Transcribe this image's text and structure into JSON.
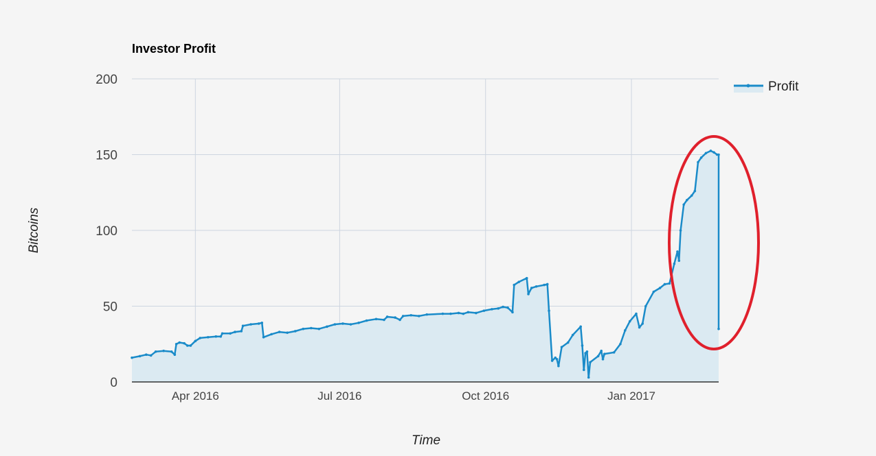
{
  "chart_data": {
    "type": "area",
    "title": "Investor Profit",
    "xlabel": "Time",
    "ylabel": "Bitcoins",
    "ylim": [
      0,
      200
    ],
    "yticks": [
      "0",
      "50",
      "100",
      "150",
      "200"
    ],
    "xlim": [
      "2016-02-21",
      "2017-02-25"
    ],
    "xticks": [
      {
        "date": "2016-04-01",
        "label": "Apr 2016"
      },
      {
        "date": "2016-07-01",
        "label": "Jul 2016"
      },
      {
        "date": "2016-10-01",
        "label": "Oct 2016"
      },
      {
        "date": "2017-01-01",
        "label": "Jan 2017"
      }
    ],
    "grid": true,
    "legend_position": "top-right",
    "colors": {
      "line": "#1a8bc9",
      "fill": "#dbeaf2",
      "grid": "#cdd5e0",
      "axis": "#333333",
      "highlight": "#e0202c"
    },
    "series": [
      {
        "name": "Profit",
        "points": [
          [
            "2016-02-21",
            16
          ],
          [
            "2016-02-26",
            17
          ],
          [
            "2016-03-01",
            18
          ],
          [
            "2016-03-04",
            17.5
          ],
          [
            "2016-03-07",
            20
          ],
          [
            "2016-03-12",
            20.5
          ],
          [
            "2016-03-17",
            20
          ],
          [
            "2016-03-19",
            18
          ],
          [
            "2016-03-20",
            25
          ],
          [
            "2016-03-22",
            26
          ],
          [
            "2016-03-25",
            25.5
          ],
          [
            "2016-03-27",
            24
          ],
          [
            "2016-03-29",
            24
          ],
          [
            "2016-04-01",
            27
          ],
          [
            "2016-04-04",
            29
          ],
          [
            "2016-04-09",
            29.5
          ],
          [
            "2016-04-14",
            30
          ],
          [
            "2016-04-17",
            30
          ],
          [
            "2016-04-18",
            32
          ],
          [
            "2016-04-23",
            32
          ],
          [
            "2016-04-26",
            33
          ],
          [
            "2016-04-30",
            33.5
          ],
          [
            "2016-05-01",
            37
          ],
          [
            "2016-05-06",
            38
          ],
          [
            "2016-05-11",
            38.5
          ],
          [
            "2016-05-13",
            39
          ],
          [
            "2016-05-14",
            29.5
          ],
          [
            "2016-05-19",
            31.5
          ],
          [
            "2016-05-24",
            33
          ],
          [
            "2016-05-29",
            32.5
          ],
          [
            "2016-06-03",
            33.5
          ],
          [
            "2016-06-08",
            35
          ],
          [
            "2016-06-13",
            35.5
          ],
          [
            "2016-06-18",
            35
          ],
          [
            "2016-06-23",
            36.5
          ],
          [
            "2016-06-28",
            38
          ],
          [
            "2016-07-03",
            38.5
          ],
          [
            "2016-07-08",
            38
          ],
          [
            "2016-07-13",
            39
          ],
          [
            "2016-07-18",
            40.5
          ],
          [
            "2016-07-24",
            41.5
          ],
          [
            "2016-07-29",
            41
          ],
          [
            "2016-07-31",
            43
          ],
          [
            "2016-08-05",
            42.5
          ],
          [
            "2016-08-08",
            41
          ],
          [
            "2016-08-10",
            43.5
          ],
          [
            "2016-08-15",
            44
          ],
          [
            "2016-08-20",
            43.5
          ],
          [
            "2016-08-25",
            44.5
          ],
          [
            "2016-09-04",
            45
          ],
          [
            "2016-09-09",
            45
          ],
          [
            "2016-09-14",
            45.5
          ],
          [
            "2016-09-17",
            45
          ],
          [
            "2016-09-20",
            46
          ],
          [
            "2016-09-25",
            45.5
          ],
          [
            "2016-09-30",
            47
          ],
          [
            "2016-10-05",
            48
          ],
          [
            "2016-10-09",
            48.5
          ],
          [
            "2016-10-12",
            49.5
          ],
          [
            "2016-10-15",
            49
          ],
          [
            "2016-10-18",
            46
          ],
          [
            "2016-10-19",
            64
          ],
          [
            "2016-10-22",
            66
          ],
          [
            "2016-10-27",
            68.5
          ],
          [
            "2016-10-28",
            58
          ],
          [
            "2016-10-30",
            62
          ],
          [
            "2016-11-02",
            63
          ],
          [
            "2016-11-07",
            64
          ],
          [
            "2016-11-09",
            64.5
          ],
          [
            "2016-11-10",
            47
          ],
          [
            "2016-11-12",
            14
          ],
          [
            "2016-11-14",
            16
          ],
          [
            "2016-11-15",
            15
          ],
          [
            "2016-11-16",
            10.5
          ],
          [
            "2016-11-18",
            23
          ],
          [
            "2016-11-22",
            26
          ],
          [
            "2016-11-25",
            31
          ],
          [
            "2016-11-30",
            36.5
          ],
          [
            "2016-12-01",
            24
          ],
          [
            "2016-12-02",
            8
          ],
          [
            "2016-12-03",
            19
          ],
          [
            "2016-12-04",
            20
          ],
          [
            "2016-12-05",
            3
          ],
          [
            "2016-12-06",
            13
          ],
          [
            "2016-12-11",
            17
          ],
          [
            "2016-12-13",
            20.5
          ],
          [
            "2016-12-14",
            15
          ],
          [
            "2016-12-15",
            18.5
          ],
          [
            "2016-12-21",
            19.5
          ],
          [
            "2016-12-25",
            25
          ],
          [
            "2016-12-28",
            34
          ],
          [
            "2016-12-31",
            40
          ],
          [
            "2017-01-04",
            45
          ],
          [
            "2017-01-06",
            36
          ],
          [
            "2017-01-08",
            38.5
          ],
          [
            "2017-01-10",
            50
          ],
          [
            "2017-01-15",
            59.5
          ],
          [
            "2017-01-19",
            62
          ],
          [
            "2017-01-22",
            64.5
          ],
          [
            "2017-01-25",
            65
          ],
          [
            "2017-01-28",
            78
          ],
          [
            "2017-01-30",
            86
          ],
          [
            "2017-01-31",
            80
          ],
          [
            "2017-02-01",
            100
          ],
          [
            "2017-02-03",
            117
          ],
          [
            "2017-02-05",
            120
          ],
          [
            "2017-02-08",
            123
          ],
          [
            "2017-02-10",
            126
          ],
          [
            "2017-02-12",
            145
          ],
          [
            "2017-02-14",
            148
          ],
          [
            "2017-02-17",
            151
          ],
          [
            "2017-02-20",
            152.5
          ],
          [
            "2017-02-22",
            151.5
          ],
          [
            "2017-02-24",
            150
          ],
          [
            "2017-02-25",
            150
          ],
          [
            "2017-02-25",
            35
          ]
        ]
      }
    ]
  }
}
